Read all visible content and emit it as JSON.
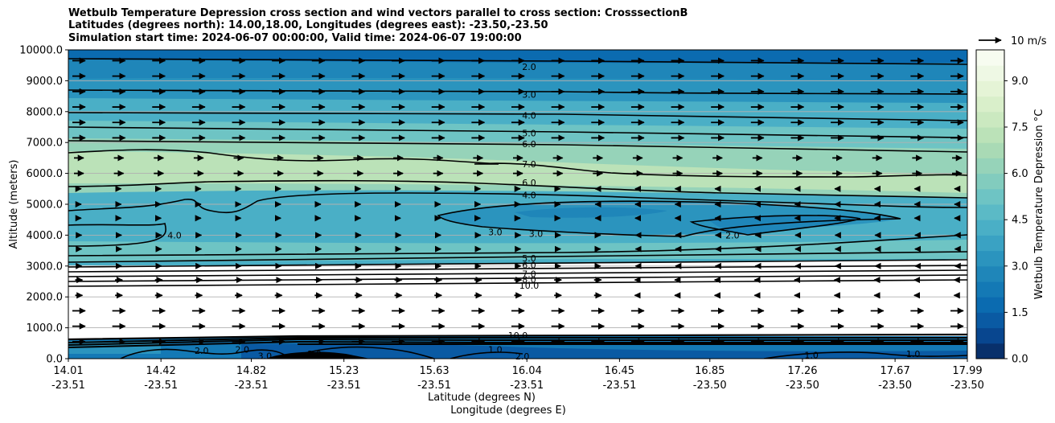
{
  "chart_data": {
    "type": "contour",
    "title_lines": [
      "Wetbulb Temperature Depression cross section and wind vectors parallel to cross section: CrosssectionB",
      "Latitudes (degrees north): 14.00,18.00, Longitudes (degrees east): -23.50,-23.50",
      "Simulation start time: 2024-06-07 00:00:00, Valid time: 2024-06-07 19:00:00"
    ],
    "ylabel": "Altitude (meters)",
    "xlabel": "Latitude (degrees N)",
    "xlabel2": "Longitude (degrees E)",
    "ylim": [
      0,
      10000
    ],
    "xlim": [
      14.01,
      17.99
    ],
    "y_ticks": [
      "0.0",
      "1000.0",
      "2000.0",
      "3000.0",
      "4000.0",
      "5000.0",
      "6000.0",
      "7000.0",
      "8000.0",
      "9000.0",
      "10000.0"
    ],
    "y_tick_values": [
      0,
      1000,
      2000,
      3000,
      4000,
      5000,
      6000,
      7000,
      8000,
      9000,
      10000
    ],
    "x_ticks": [
      {
        "lat": "14.01",
        "lon": "-23.51",
        "v": 14.01
      },
      {
        "lat": "14.42",
        "lon": "-23.51",
        "v": 14.42
      },
      {
        "lat": "14.82",
        "lon": "-23.51",
        "v": 14.82
      },
      {
        "lat": "15.23",
        "lon": "-23.51",
        "v": 15.23
      },
      {
        "lat": "15.63",
        "lon": "-23.51",
        "v": 15.63
      },
      {
        "lat": "16.04",
        "lon": "-23.51",
        "v": 16.04
      },
      {
        "lat": "16.45",
        "lon": "-23.51",
        "v": 16.45
      },
      {
        "lat": "16.85",
        "lon": "-23.50",
        "v": 16.85
      },
      {
        "lat": "17.26",
        "lon": "-23.50",
        "v": 17.26
      },
      {
        "lat": "17.67",
        "lon": "-23.50",
        "v": 17.67
      },
      {
        "lat": "17.99",
        "lon": "-23.50",
        "v": 17.99
      }
    ],
    "grid": "horizontal",
    "colorbar": {
      "label": "Wetbulb Temperature Depression °C",
      "ticks": [
        "0.0",
        "1.5",
        "3.0",
        "4.5",
        "6.0",
        "7.5",
        "9.0"
      ],
      "tick_values": [
        0,
        1.5,
        3.0,
        4.5,
        6.0,
        7.5,
        9.0
      ],
      "range": [
        0,
        10
      ],
      "colors": [
        "#08306b",
        "#08468f",
        "#0a5aa3",
        "#0b6bb0",
        "#1479b5",
        "#1f86b9",
        "#2b94be",
        "#3aa2c3",
        "#4aafc6",
        "#5bbac6",
        "#6ec4c4",
        "#82ccbe",
        "#96d3b9",
        "#a9dab5",
        "#bbe2b8",
        "#cbe9c0",
        "#d9efca",
        "#e5f4d6",
        "#eef8e4",
        "#f7fcf0"
      ]
    },
    "quiver_key": {
      "label": "10 m/s",
      "value": 10
    },
    "contour_labels": [
      {
        "text": "2.0",
        "x": 16.05,
        "y": 9450
      },
      {
        "text": "3.0",
        "x": 16.05,
        "y": 8550
      },
      {
        "text": "4.0",
        "x": 16.05,
        "y": 7880
      },
      {
        "text": "5.0",
        "x": 16.05,
        "y": 7300
      },
      {
        "text": "6.0",
        "x": 16.05,
        "y": 6950
      },
      {
        "text": "7.0",
        "x": 16.05,
        "y": 6300
      },
      {
        "text": "6.0",
        "x": 16.05,
        "y": 5700
      },
      {
        "text": "4.0",
        "x": 16.05,
        "y": 5300
      },
      {
        "text": "3.0",
        "x": 15.9,
        "y": 4100
      },
      {
        "text": "3.0",
        "x": 16.08,
        "y": 4050
      },
      {
        "text": "4.0",
        "x": 14.48,
        "y": 4000
      },
      {
        "text": "2.0",
        "x": 16.95,
        "y": 4000
      },
      {
        "text": "5.0",
        "x": 16.05,
        "y": 3260
      },
      {
        "text": "6.0",
        "x": 16.05,
        "y": 3030
      },
      {
        "text": "7.0",
        "x": 16.05,
        "y": 2750
      },
      {
        "text": "8.0",
        "x": 16.05,
        "y": 2570
      },
      {
        "text": "10.0",
        "x": 16.05,
        "y": 2370
      },
      {
        "text": "10.0",
        "x": 16.0,
        "y": 760
      },
      {
        "text": "2.0",
        "x": 14.6,
        "y": 260
      },
      {
        "text": "2.0",
        "x": 14.78,
        "y": 300
      },
      {
        "text": "3.0",
        "x": 14.88,
        "y": 90
      },
      {
        "text": "2.0",
        "x": 15.1,
        "y": 160
      },
      {
        "text": "1.0",
        "x": 15.9,
        "y": 300
      },
      {
        "text": "2.0",
        "x": 16.02,
        "y": 80
      },
      {
        "text": "1.0",
        "x": 17.3,
        "y": 120
      },
      {
        "text": "1.0",
        "x": 17.75,
        "y": 160
      }
    ]
  }
}
